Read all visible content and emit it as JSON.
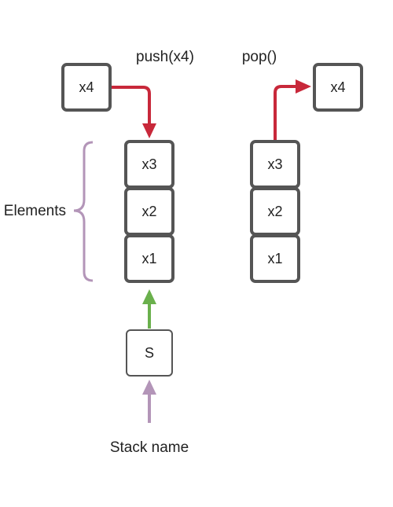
{
  "labels": {
    "push": "push(x4)",
    "pop": "pop()",
    "elements": "Elements",
    "stack_name": "Stack name"
  },
  "push_stack": {
    "pushed": "x4",
    "cells": [
      "x3",
      "x2",
      "x1"
    ],
    "name": "S"
  },
  "pop_stack": {
    "popped": "x4",
    "cells": [
      "x3",
      "x2",
      "x1"
    ]
  },
  "colors": {
    "box_border": "#555555",
    "arrow_red": "#c8283a",
    "arrow_green": "#6ab04c",
    "purple": "#b395b8",
    "text": "#222222"
  }
}
